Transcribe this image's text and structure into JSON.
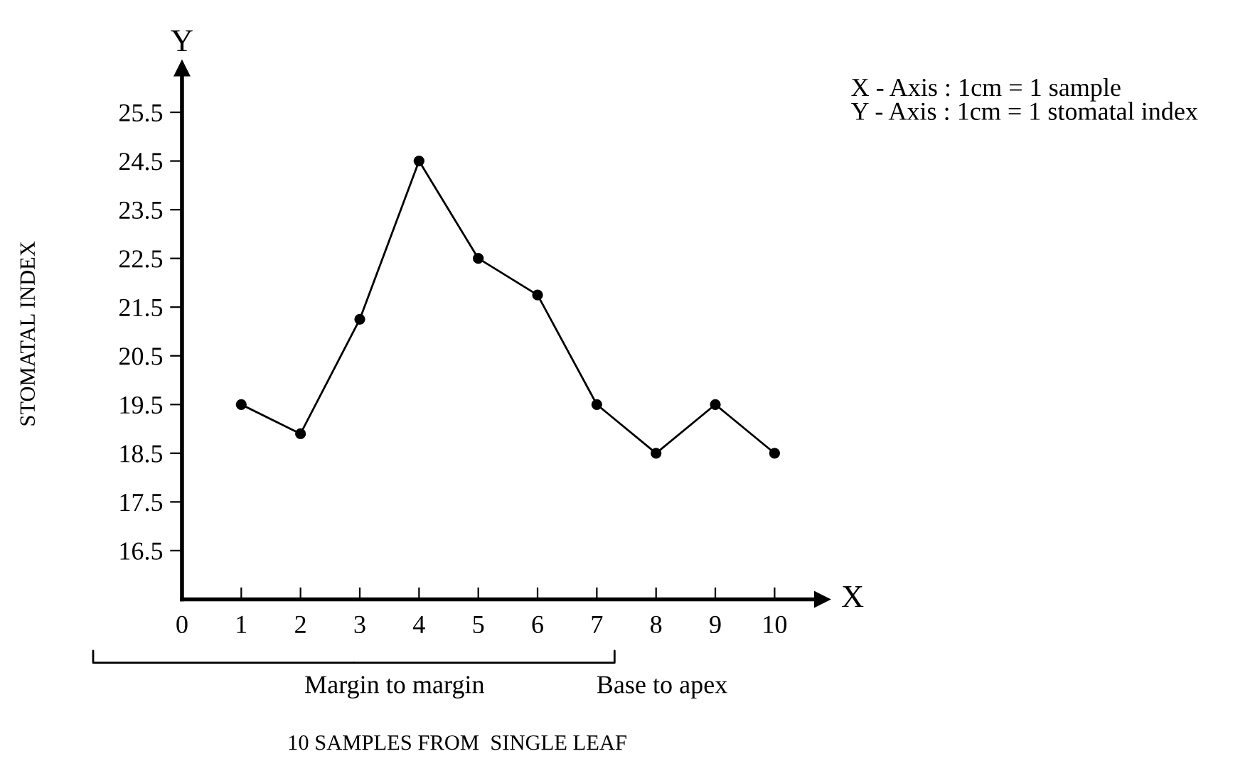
{
  "chart_data": {
    "type": "line",
    "xlabel": "10 SAMPLES FROM  SINGLE LEAF",
    "ylabel": "STOMATAL INDEX",
    "annotations": [
      "Y",
      "X",
      "X - Axis : 1cm = 1 sample",
      "Y - Axis : 1cm = 1 stomatal index",
      "Margin to margin",
      "Base to apex"
    ],
    "x": [
      1,
      2,
      3,
      4,
      5,
      6,
      7,
      8,
      9,
      10
    ],
    "series": [
      {
        "color": "#000000",
        "values": [
          19.5,
          18.9,
          21.25,
          24.5,
          22.5,
          21.75,
          19.5,
          18.5,
          19.5,
          18.5
        ]
      }
    ],
    "xlim": [
      0,
      10.8
    ],
    "ylim": [
      15.5,
      26.4
    ],
    "xticks": [
      0,
      1,
      2,
      3,
      4,
      5,
      6,
      7,
      8,
      9,
      10
    ],
    "yticks": [
      16.5,
      17.5,
      18.5,
      19.5,
      20.5,
      21.5,
      22.5,
      23.5,
      24.5,
      25.5
    ],
    "grid": false,
    "legend": false,
    "marker": "circle",
    "line_style": "solid"
  }
}
